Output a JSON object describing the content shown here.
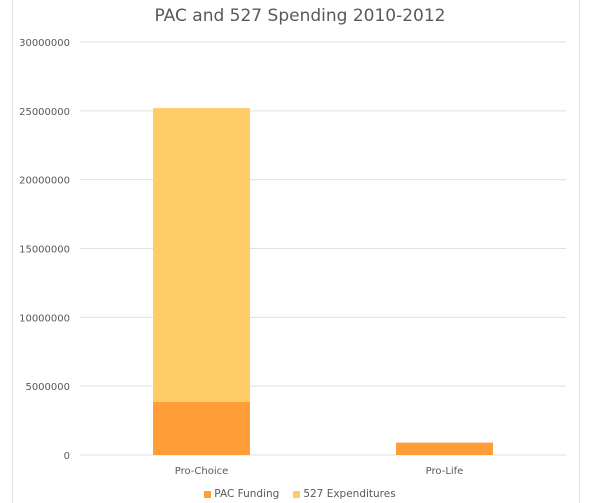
{
  "chart_data": {
    "type": "bar",
    "stacked": true,
    "title": "PAC and 527 Spending 2010-2012",
    "categories": [
      "Pro-Choice",
      "Pro-Life"
    ],
    "series": [
      {
        "name": "PAC Funding",
        "values": [
          3850000,
          900000
        ],
        "color": "#FF9E36"
      },
      {
        "name": "527 Expenditures",
        "values": [
          21350000,
          0
        ],
        "color": "#FFCC66"
      }
    ],
    "ylim": [
      0,
      30000000
    ],
    "yticks": [
      "0",
      "5000000",
      "10000000",
      "15000000",
      "20000000",
      "25000000",
      "30000000"
    ],
    "grid": true,
    "legend": "bottom"
  }
}
